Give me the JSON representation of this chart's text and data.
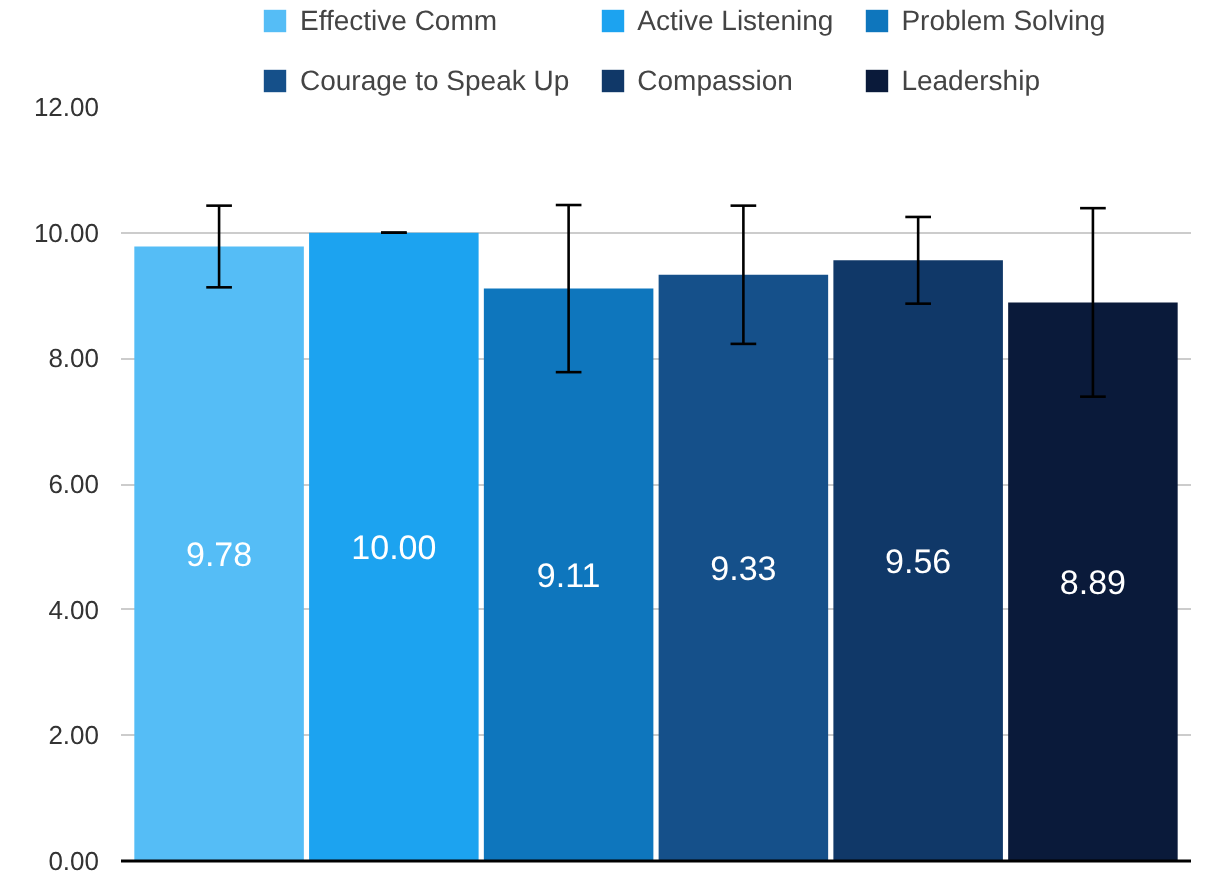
{
  "chart_data": {
    "type": "bar",
    "categories": [
      null
    ],
    "series": [
      {
        "name": "Effective Comm",
        "color": "#55bdf6",
        "values": [
          9.78
        ],
        "errors": [
          0.65
        ],
        "value_labels": [
          "9.78"
        ]
      },
      {
        "name": "Active Listening",
        "color": "#1ca3f0",
        "values": [
          10.0
        ],
        "errors": [
          0.0
        ],
        "value_labels": [
          "10.00"
        ]
      },
      {
        "name": "Problem Solving",
        "color": "#0e76bd",
        "values": [
          9.11
        ],
        "errors": [
          1.33
        ],
        "value_labels": [
          "9.11"
        ]
      },
      {
        "name": "Courage to Speak Up",
        "color": "#15508a",
        "values": [
          9.33
        ],
        "errors": [
          1.1
        ],
        "value_labels": [
          "9.33"
        ]
      },
      {
        "name": "Compassion",
        "color": "#103868",
        "values": [
          9.56
        ],
        "errors": [
          0.69
        ],
        "value_labels": [
          "9.56"
        ]
      },
      {
        "name": "Leadership",
        "color": "#0a1a3a",
        "values": [
          8.89
        ],
        "errors": [
          1.5
        ],
        "value_labels": [
          "8.89"
        ]
      }
    ],
    "ylim": [
      0,
      12
    ],
    "yticks": [
      {
        "value": 0,
        "label": "0.00"
      },
      {
        "value": 2,
        "label": "2.00"
      },
      {
        "value": 4,
        "label": "4.00"
      },
      {
        "value": 6,
        "label": "6.00"
      },
      {
        "value": 8,
        "label": "8.00"
      },
      {
        "value": 10,
        "label": "10.00"
      },
      {
        "value": 12,
        "label": "12.00"
      }
    ],
    "grid": "y",
    "legend": "top"
  }
}
